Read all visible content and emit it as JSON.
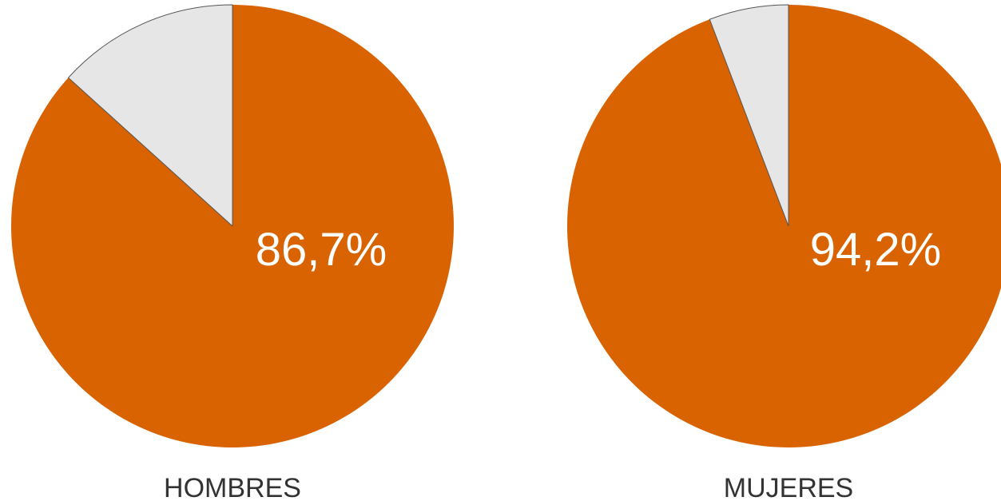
{
  "colors": {
    "primary": "#d96300",
    "remainder": "#e6e6e6",
    "value_label": "#ffffff",
    "caption": "#333333"
  },
  "chart_data": [
    {
      "type": "pie",
      "label": "HOMBRES",
      "value_label": "86,7%",
      "slices": [
        {
          "value": 86.7
        },
        {
          "value": 13.3
        }
      ]
    },
    {
      "type": "pie",
      "label": "MUJERES",
      "value_label": "94,2%",
      "slices": [
        {
          "value": 94.2
        },
        {
          "value": 5.8
        }
      ]
    }
  ]
}
